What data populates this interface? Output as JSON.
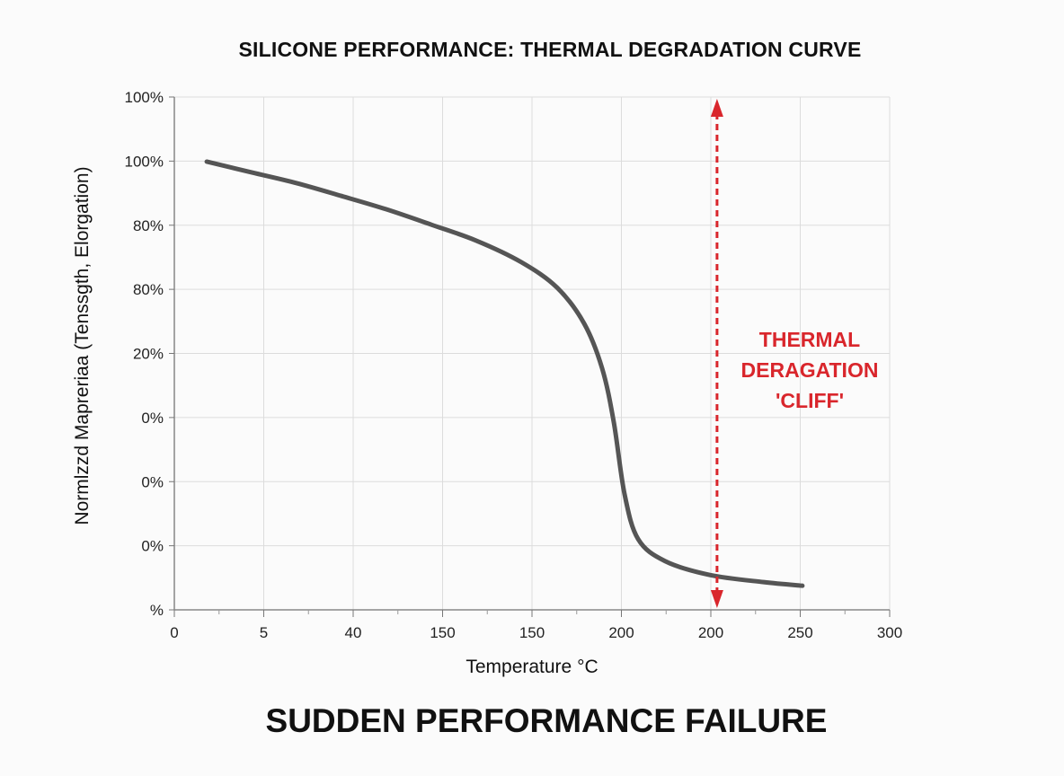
{
  "chart_data": {
    "type": "line",
    "title": "SILICONE PERFORMANCE: THERMAL DEGRADATION CURVE",
    "xlabel": "Temperature °C",
    "ylabel": "Normlzzd Mapreriaa (Tenssgth, Elorgation)",
    "x_tick_labels": [
      "0",
      "5",
      "40",
      "150",
      "150",
      "200",
      "200",
      "250",
      "300"
    ],
    "y_tick_labels": [
      "%",
      "0%",
      "0%",
      "0%",
      "20%",
      "80%",
      "80%",
      "100%",
      "100%"
    ],
    "xlim": [
      0,
      300
    ],
    "ylim": [
      0,
      100
    ],
    "grid": true,
    "series": [
      {
        "color": "#555555",
        "x": [
          13.6,
          32.4,
          51.3,
          70.1,
          88.9,
          107.8,
          126.6,
          145.5,
          160.6,
          171.9,
          179.4,
          184.3,
          188.8,
          194.5,
          205.8,
          224.6,
          247.2,
          263.4
        ],
        "y": [
          87.4,
          85.3,
          83.2,
          80.7,
          78.1,
          75.1,
          72.0,
          67.8,
          62.8,
          55.8,
          47.1,
          36.6,
          22.6,
          13.8,
          9.5,
          6.8,
          5.4,
          4.7
        ]
      }
    ],
    "annotation": {
      "lines": [
        "THERMAL",
        "DERAGATION",
        "'CLIFF'"
      ],
      "arrow_x": 227.6,
      "arrow_style": "dashed double-headed vertical",
      "color": "#d9262c"
    }
  },
  "footer": "SUDDEN PERFORMANCE FAILURE"
}
